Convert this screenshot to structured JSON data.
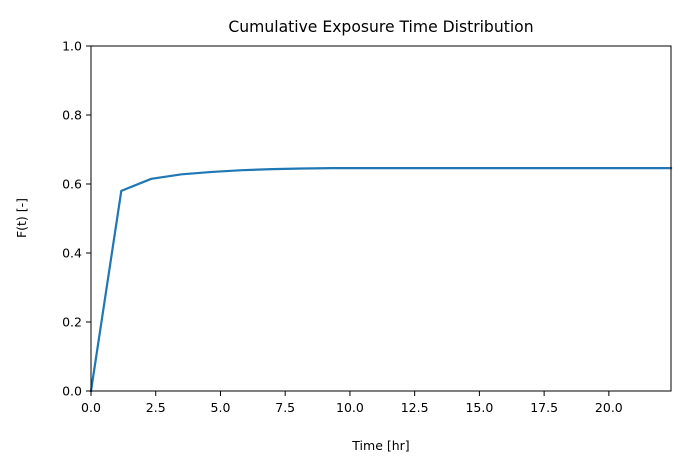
{
  "chart_data": {
    "type": "line",
    "title": "Cumulative Exposure Time Distribution",
    "xlabel": "Time [hr]",
    "ylabel": "F(t) [-]",
    "xlim": [
      0,
      22.4
    ],
    "ylim": [
      0,
      1.0
    ],
    "x_ticks": [
      0.0,
      2.5,
      5.0,
      7.5,
      10.0,
      12.5,
      15.0,
      17.5,
      20.0
    ],
    "x_tick_labels": [
      "0.0",
      "2.5",
      "5.0",
      "7.5",
      "10.0",
      "12.5",
      "15.0",
      "17.5",
      "20.0"
    ],
    "y_ticks": [
      0.0,
      0.2,
      0.4,
      0.6,
      0.8,
      1.0
    ],
    "y_tick_labels": [
      "0.0",
      "0.2",
      "0.4",
      "0.6",
      "0.8",
      "1.0"
    ],
    "grid": false,
    "series": [
      {
        "color": "#1f77b4",
        "x": [
          0.0,
          1.17,
          2.33,
          3.5,
          4.67,
          5.83,
          7.0,
          8.17,
          9.33,
          10.5,
          11.67,
          12.83,
          14.0,
          15.17,
          16.33,
          17.5,
          18.67,
          19.83,
          21.0,
          22.4
        ],
        "y": [
          0.0,
          0.58,
          0.615,
          0.628,
          0.635,
          0.64,
          0.643,
          0.645,
          0.646,
          0.646,
          0.646,
          0.646,
          0.646,
          0.646,
          0.646,
          0.646,
          0.646,
          0.646,
          0.646,
          0.646
        ]
      }
    ]
  }
}
